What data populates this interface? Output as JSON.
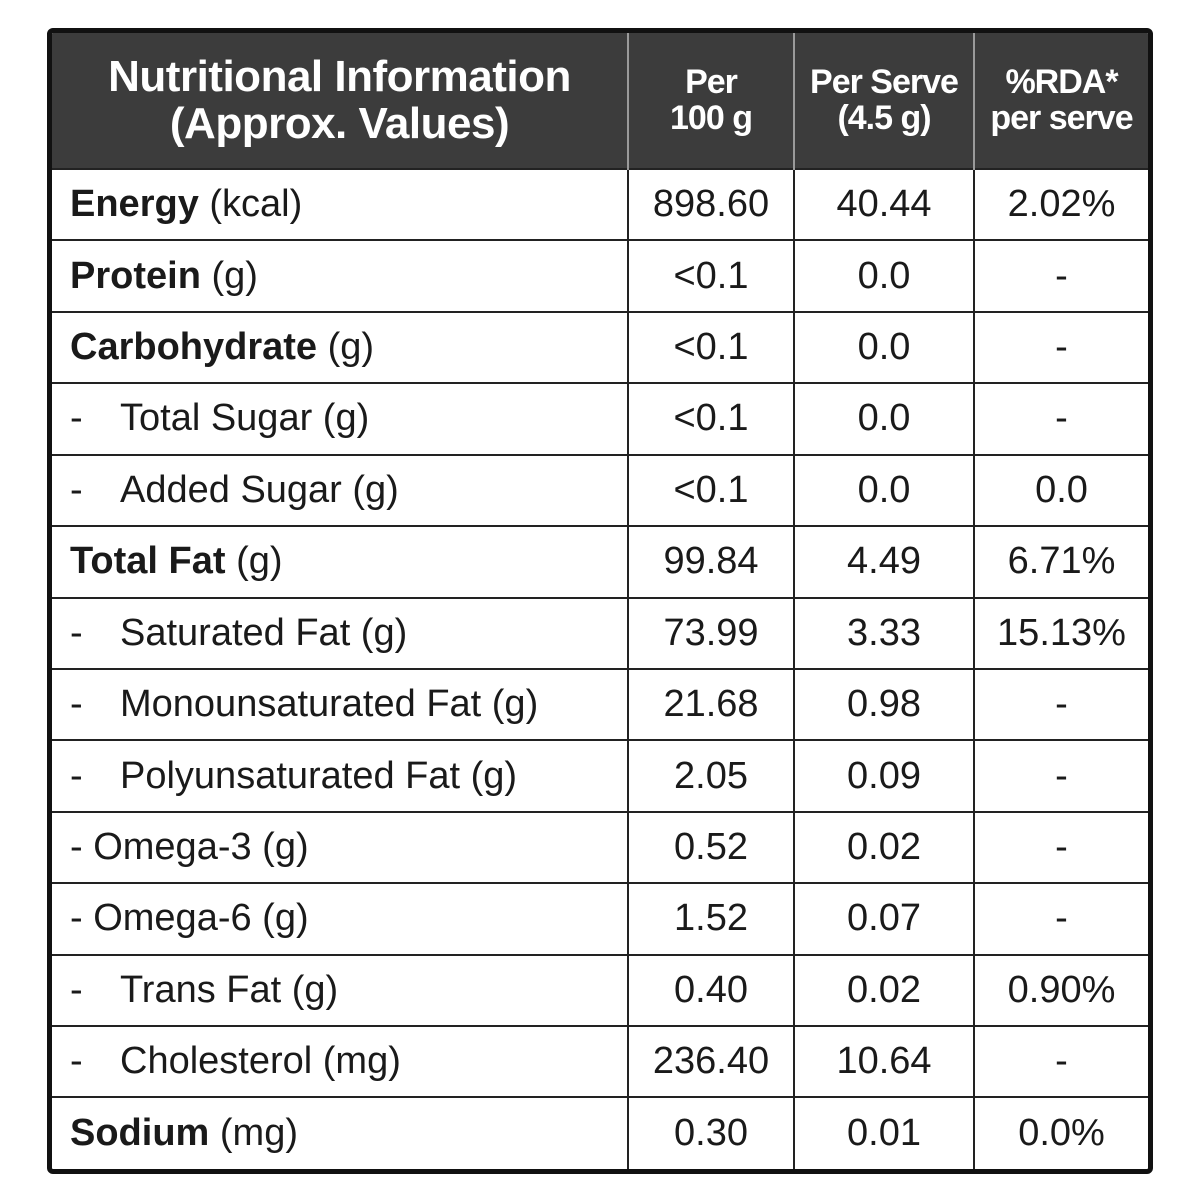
{
  "header": {
    "title_line1": "Nutritional Information",
    "title_line2": "(Approx. Values)",
    "col1_line1": "Per",
    "col1_line2": "100 g",
    "col2_line1": "Per Serve",
    "col2_line2": "(4.5 g)",
    "col3_line1": "%RDA*",
    "col3_line2": "per serve"
  },
  "rows": [
    {
      "name": "Energy",
      "unit": "(kcal)",
      "per100": "898.60",
      "perServe": "40.44",
      "rda": "2.02%"
    },
    {
      "name": "Protein",
      "unit": "(g)",
      "per100": "<0.1",
      "perServe": "0.0",
      "rda": "-"
    },
    {
      "name": "Carbohydrate",
      "unit": "(g)",
      "per100": "<0.1",
      "perServe": "0.0",
      "rda": "-"
    },
    {
      "dash": "-",
      "name": "Total Sugar (g)",
      "per100": "<0.1",
      "perServe": "0.0",
      "rda": "-"
    },
    {
      "dash": "-",
      "name": "Added Sugar (g)",
      "per100": "<0.1",
      "perServe": "0.0",
      "rda": "0.0"
    },
    {
      "name": "Total Fat",
      "unit": "(g)",
      "per100": "99.84",
      "perServe": "4.49",
      "rda": "6.71%"
    },
    {
      "dash": "-",
      "name": "Saturated Fat (g)",
      "per100": "73.99",
      "perServe": "3.33",
      "rda": "15.13%"
    },
    {
      "dash": "-",
      "name": "Monounsaturated Fat (g)",
      "per100": "21.68",
      "perServe": "0.98",
      "rda": "-"
    },
    {
      "dash": "-",
      "name": "Polyunsaturated Fat (g)",
      "per100": "2.05",
      "perServe": "0.09",
      "rda": "-"
    },
    {
      "name": "- Omega-3 (g)",
      "per100": "0.52",
      "perServe": "0.02",
      "rda": "-"
    },
    {
      "name": "- Omega-6 (g)",
      "per100": "1.52",
      "perServe": "0.07",
      "rda": "-"
    },
    {
      "dash": "-",
      "name": "Trans Fat (g)",
      "per100": "0.40",
      "perServe": "0.02",
      "rda": "0.90%"
    },
    {
      "dash": "-",
      "name": "Cholesterol (mg)",
      "per100": "236.40",
      "perServe": "10.64",
      "rda": "-"
    },
    {
      "name": "Sodium",
      "unit": "(mg)",
      "per100": "0.30",
      "perServe": "0.01",
      "rda": "0.0%"
    }
  ]
}
